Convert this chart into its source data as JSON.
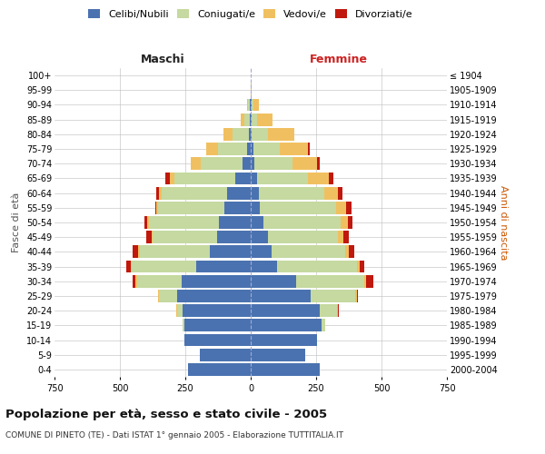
{
  "age_groups": [
    "0-4",
    "5-9",
    "10-14",
    "15-19",
    "20-24",
    "25-29",
    "30-34",
    "35-39",
    "40-44",
    "45-49",
    "50-54",
    "55-59",
    "60-64",
    "65-69",
    "70-74",
    "75-79",
    "80-84",
    "85-89",
    "90-94",
    "95-99",
    "100+"
  ],
  "birth_years": [
    "2000-2004",
    "1995-1999",
    "1990-1994",
    "1985-1989",
    "1980-1984",
    "1975-1979",
    "1970-1974",
    "1965-1969",
    "1960-1964",
    "1955-1959",
    "1950-1954",
    "1945-1949",
    "1940-1944",
    "1935-1939",
    "1930-1934",
    "1925-1929",
    "1920-1924",
    "1915-1919",
    "1910-1914",
    "1905-1909",
    "≤ 1904"
  ],
  "colors": {
    "celibi": "#4a72b0",
    "coniugati": "#c5d9a0",
    "vedovi": "#f0c060",
    "divorziati": "#c0180c"
  },
  "maschi": {
    "celibi": [
      240,
      195,
      255,
      255,
      260,
      280,
      265,
      210,
      155,
      130,
      120,
      100,
      90,
      60,
      30,
      15,
      8,
      3,
      2,
      0,
      0
    ],
    "coniugati": [
      0,
      0,
      0,
      5,
      20,
      70,
      170,
      245,
      270,
      245,
      270,
      255,
      250,
      230,
      160,
      110,
      60,
      20,
      8,
      1,
      0
    ],
    "vedovi": [
      0,
      0,
      0,
      0,
      3,
      5,
      5,
      5,
      5,
      5,
      5,
      5,
      10,
      20,
      40,
      45,
      35,
      15,
      5,
      0,
      0
    ],
    "divorziati": [
      0,
      0,
      0,
      0,
      0,
      0,
      10,
      15,
      20,
      20,
      10,
      5,
      10,
      15,
      0,
      0,
      0,
      0,
      0,
      0,
      0
    ]
  },
  "femmine": {
    "celibi": [
      265,
      210,
      255,
      270,
      265,
      230,
      175,
      100,
      80,
      65,
      50,
      35,
      30,
      25,
      15,
      10,
      5,
      4,
      2,
      0,
      0
    ],
    "coniugati": [
      0,
      0,
      0,
      15,
      65,
      170,
      260,
      305,
      280,
      270,
      295,
      290,
      250,
      195,
      145,
      100,
      60,
      20,
      8,
      1,
      0
    ],
    "vedovi": [
      0,
      0,
      0,
      0,
      3,
      5,
      5,
      10,
      15,
      20,
      25,
      40,
      55,
      80,
      95,
      110,
      100,
      60,
      20,
      2,
      0
    ],
    "divorziati": [
      0,
      0,
      0,
      0,
      5,
      5,
      30,
      20,
      20,
      20,
      20,
      20,
      15,
      15,
      10,
      5,
      0,
      0,
      0,
      0,
      0
    ]
  },
  "title": "Popolazione per età, sesso e stato civile - 2005",
  "subtitle": "COMUNE DI PINETO (TE) - Dati ISTAT 1° gennaio 2005 - Elaborazione TUTTITALIA.IT",
  "xlabel_left": "Maschi",
  "xlabel_right": "Femmine",
  "ylabel_left": "Fasce di età",
  "ylabel_right": "Anni di nascita",
  "xlim": 750,
  "legend_labels": [
    "Celibi/Nubili",
    "Coniugati/e",
    "Vedovi/e",
    "Divorziati/e"
  ],
  "bg_color": "#ffffff",
  "grid_color": "#bbbbbb",
  "bar_height": 0.85
}
